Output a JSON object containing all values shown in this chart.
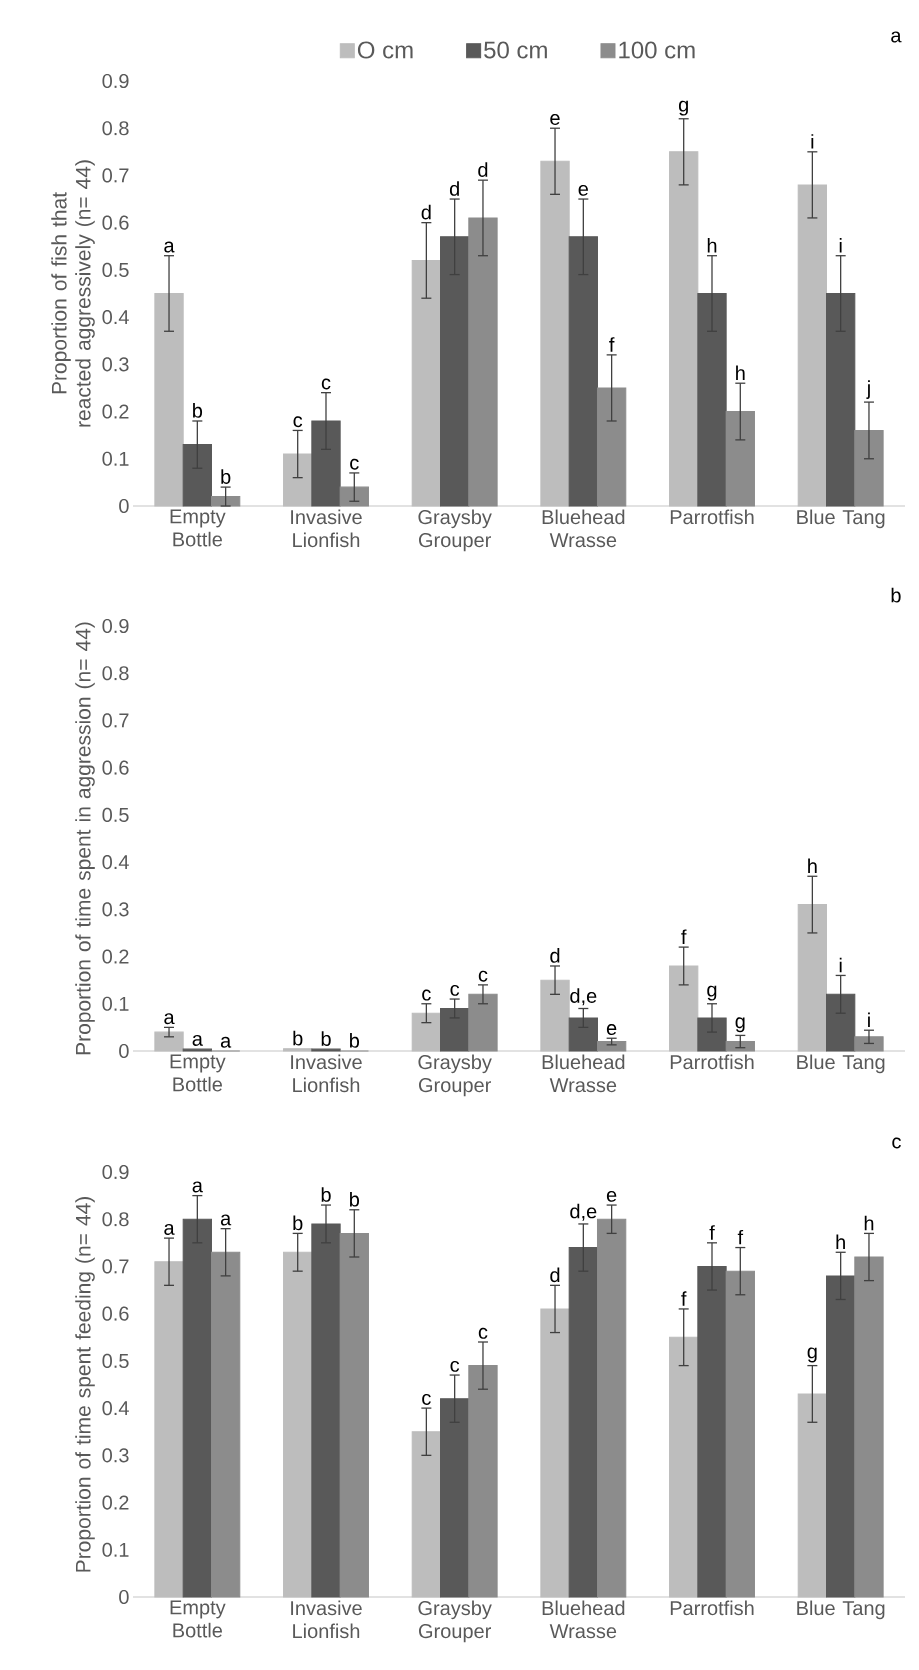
{
  "chart_data": [
    {
      "type": "bar",
      "ylabel": "Proportion of fish that reacted aggressively (n= 44)",
      "annotations": [
        "a"
      ],
      "legend": "top",
      "categories": [
        "Empty Bottle",
        "Invasive Lionfish",
        "Graysby Grouper",
        "Bluehead Wrasse",
        "Parrotfish",
        "Blue Tang"
      ],
      "ylim": [
        0,
        0.9
      ],
      "yticks": [
        0,
        0.1,
        0.2,
        0.3,
        0.4,
        0.5,
        0.6,
        0.7,
        0.8,
        0.9
      ],
      "series": [
        {
          "name": "O cm",
          "color": "#bdbdbd",
          "values": [
            0.45,
            0.11,
            0.52,
            0.73,
            0.75,
            0.68
          ],
          "errors": [
            0.08,
            0.05,
            0.08,
            0.07,
            0.07,
            0.07
          ],
          "value_labels": [
            "a",
            "c",
            "d",
            "e",
            "g",
            "i"
          ]
        },
        {
          "name": "50 cm",
          "color": "#595959",
          "values": [
            0.13,
            0.18,
            0.57,
            0.57,
            0.45,
            0.45
          ],
          "errors": [
            0.05,
            0.06,
            0.08,
            0.08,
            0.08,
            0.08
          ],
          "value_labels": [
            "b",
            "c",
            "d",
            "e",
            "h",
            "i"
          ]
        },
        {
          "name": "100 cm",
          "color": "#8c8c8c",
          "values": [
            0.02,
            0.04,
            0.61,
            0.25,
            0.2,
            0.16
          ],
          "errors": [
            0.02,
            0.03,
            0.08,
            0.07,
            0.06,
            0.06
          ],
          "value_labels": [
            "b",
            "c",
            "d",
            "f",
            "h",
            "j"
          ]
        }
      ]
    },
    {
      "type": "bar",
      "ylabel": "Proportion of time spent in aggression (n= 44)",
      "annotations": [
        "b"
      ],
      "categories": [
        "Empty Bottle",
        "Invasive Lionfish",
        "Graysby Grouper",
        "Bluehead Wrasse",
        "Parrotfish",
        "Blue Tang"
      ],
      "ylim": [
        0,
        0.9
      ],
      "yticks": [
        0,
        0.1,
        0.2,
        0.3,
        0.4,
        0.5,
        0.6,
        0.7,
        0.8,
        0.9
      ],
      "series": [
        {
          "color": "#bdbdbd",
          "values": [
            0.04,
            0.005,
            0.08,
            0.15,
            0.18,
            0.31
          ],
          "errors": [
            0.01,
            null,
            0.02,
            0.03,
            0.04,
            0.06
          ],
          "value_labels": [
            "a",
            "b",
            "c",
            "d",
            "f",
            "h"
          ]
        },
        {
          "color": "#595959",
          "values": [
            0.004,
            0.004,
            0.09,
            0.07,
            0.07,
            0.12
          ],
          "errors": [
            null,
            null,
            0.02,
            0.02,
            0.03,
            0.04
          ],
          "value_labels": [
            "a",
            "b",
            "c",
            "d,e",
            "g",
            "i"
          ]
        },
        {
          "color": "#8c8c8c",
          "values": [
            0,
            0,
            0.12,
            0.02,
            0.02,
            0.03
          ],
          "errors": [
            null,
            null,
            0.02,
            0.007,
            0.013,
            0.014
          ],
          "value_labels": [
            "a",
            "b",
            "c",
            "e",
            "g",
            "i"
          ]
        }
      ]
    },
    {
      "type": "bar",
      "ylabel": "Proportion of time spent feeding (n= 44)",
      "annotations": [
        "c"
      ],
      "categories": [
        "Empty Bottle",
        "Invasive Lionfish",
        "Graysby Grouper",
        "Bluehead Wrasse",
        "Parrotfish",
        "Blue Tang"
      ],
      "ylim": [
        0,
        0.9
      ],
      "yticks": [
        0,
        0.1,
        0.2,
        0.3,
        0.4,
        0.5,
        0.6,
        0.7,
        0.8,
        0.9
      ],
      "series": [
        {
          "color": "#bdbdbd",
          "values": [
            0.71,
            0.73,
            0.35,
            0.61,
            0.55,
            0.43
          ],
          "errors": [
            0.05,
            0.04,
            0.05,
            0.05,
            0.06,
            0.06
          ],
          "value_labels": [
            "a",
            "b",
            "c",
            "d",
            "f",
            "g"
          ]
        },
        {
          "color": "#595959",
          "values": [
            0.8,
            0.79,
            0.42,
            0.74,
            0.7,
            0.68
          ],
          "errors": [
            0.05,
            0.04,
            0.05,
            0.05,
            0.05,
            0.05
          ],
          "value_labels": [
            "a",
            "b",
            "c",
            "d,e",
            "f",
            "h"
          ]
        },
        {
          "color": "#8c8c8c",
          "values": [
            0.73,
            0.77,
            0.49,
            0.8,
            0.69,
            0.72
          ],
          "errors": [
            0.05,
            0.05,
            0.05,
            0.03,
            0.05,
            0.05
          ],
          "value_labels": [
            "a",
            "b",
            "c",
            "e",
            "f",
            "h"
          ]
        }
      ]
    }
  ]
}
